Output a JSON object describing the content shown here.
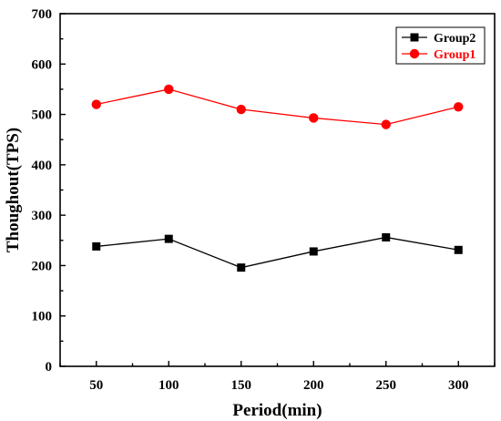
{
  "chart_data": {
    "type": "line",
    "xlabel": "Period(min)",
    "ylabel": "Thoughout(TPS)",
    "x": [
      50,
      100,
      150,
      200,
      250,
      300
    ],
    "xlim": [
      25,
      325
    ],
    "ylim": [
      0,
      700
    ],
    "x_ticks": [
      "50",
      "100",
      "150",
      "200",
      "250",
      "300"
    ],
    "y_ticks": [
      "0",
      "100",
      "200",
      "300",
      "400",
      "500",
      "600",
      "700"
    ],
    "series": [
      {
        "name": "Group2",
        "values": [
          238,
          253,
          196,
          228,
          256,
          231
        ],
        "color": "#000000",
        "marker": "square"
      },
      {
        "name": "Group1",
        "values": [
          520,
          550,
          510,
          493,
          480,
          515
        ],
        "color": "#ff0000",
        "marker": "circle"
      }
    ],
    "legend_position": "top-right",
    "grid": false
  }
}
